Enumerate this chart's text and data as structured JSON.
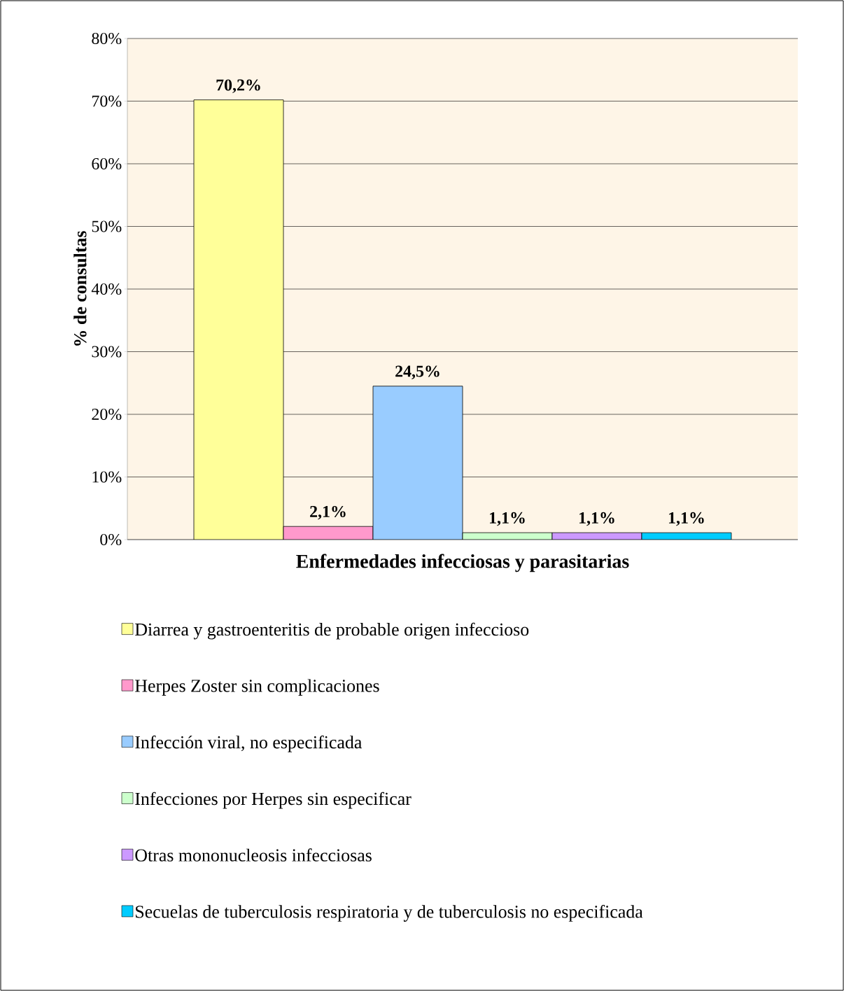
{
  "chart_data": {
    "type": "bar",
    "xlabel": "Enfermedades infecciosas y parasitarias",
    "ylabel": "% de consultas",
    "categories": [
      null
    ],
    "series": [
      {
        "name": "Diarrea y gastroenteritis de probable origen infeccioso",
        "color": "#ffff99",
        "values": [
          70.2
        ],
        "value_labels": [
          "70,2%"
        ]
      },
      {
        "name": "Herpes Zoster sin complicaciones",
        "color": "#ff99cc",
        "values": [
          2.1
        ],
        "value_labels": [
          "2,1%"
        ]
      },
      {
        "name": "Infección viral, no especificada",
        "color": "#99ccff",
        "values": [
          24.5
        ],
        "value_labels": [
          "24,5%"
        ]
      },
      {
        "name": "Infecciones por Herpes sin especificar",
        "color": "#ccffcc",
        "values": [
          1.1
        ],
        "value_labels": [
          "1,1%"
        ]
      },
      {
        "name": "Otras mononucleosis infecciosas",
        "color": "#cc99ff",
        "values": [
          1.1
        ],
        "value_labels": [
          "1,1%"
        ]
      },
      {
        "name": "Secuelas de tuberculosis respiratoria y de tuberculosis no especificada",
        "color": "#00ccff",
        "values": [
          1.1
        ],
        "value_labels": [
          "1,1%"
        ]
      }
    ],
    "ylim": [
      0,
      80
    ],
    "yticks": [
      {
        "value": 0,
        "label": "0%"
      },
      {
        "value": 10,
        "label": "10%"
      },
      {
        "value": 20,
        "label": "20%"
      },
      {
        "value": 30,
        "label": "30%"
      },
      {
        "value": 40,
        "label": "40%"
      },
      {
        "value": 50,
        "label": "50%"
      },
      {
        "value": 60,
        "label": "60%"
      },
      {
        "value": 70,
        "label": "70%"
      },
      {
        "value": 80,
        "label": "80%"
      }
    ],
    "grid": "y",
    "legend": "bottom"
  }
}
